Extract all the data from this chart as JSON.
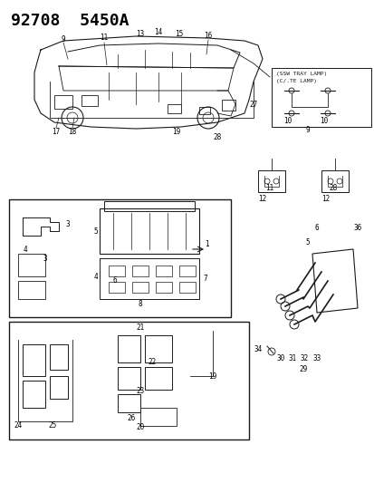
{
  "title": "92708  5450A",
  "background_color": "#ffffff",
  "line_color": "#1a1a1a",
  "label_color": "#000000",
  "fig_width": 4.14,
  "fig_height": 5.33,
  "dpi": 100,
  "title_fontsize": 13,
  "title_weight": "bold",
  "note_text_1": "(SSW TRAY LAMP)",
  "note_text_2": "(C/.TE LAMP)",
  "font_size_labels": 5.5
}
